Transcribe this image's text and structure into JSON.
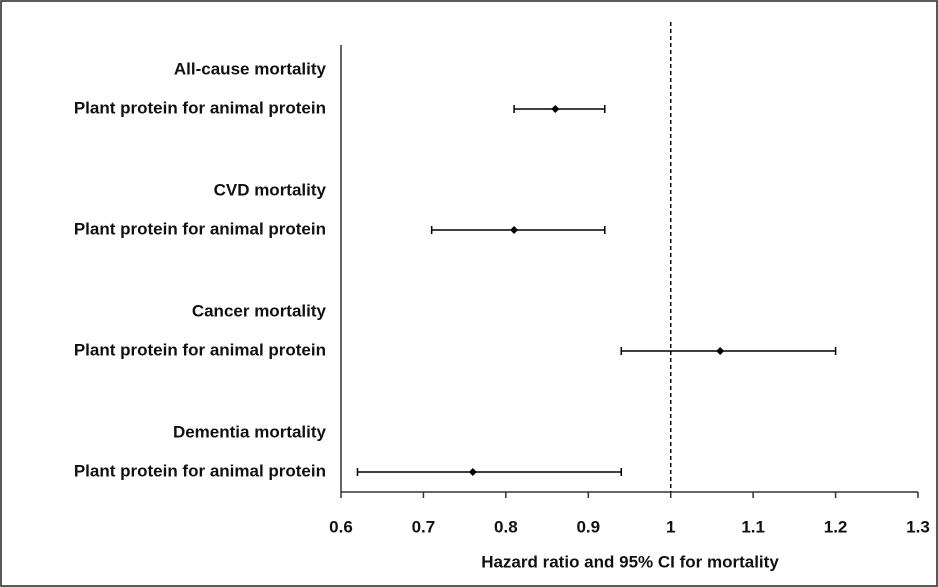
{
  "chart_data": {
    "type": "forest",
    "xlabel": "Hazard ratio and 95% CI for mortality",
    "groups": [
      {
        "name": "All-cause mortality",
        "label": "Plant protein for animal protein",
        "value": 0.86,
        "lower": 0.81,
        "upper": 0.92
      },
      {
        "name": "CVD mortality",
        "label": "Plant protein for animal protein",
        "value": 0.81,
        "lower": 0.71,
        "upper": 0.92
      },
      {
        "name": "Cancer mortality",
        "label": "Plant protein for animal protein",
        "value": 1.06,
        "lower": 0.94,
        "upper": 1.2
      },
      {
        "name": "Dementia mortality",
        "label": "Plant protein for animal protein",
        "value": 0.76,
        "lower": 0.62,
        "upper": 0.94
      }
    ],
    "reference_line": 1,
    "color": "#000000",
    "xlim": [
      0.6,
      1.3
    ],
    "xticks": [
      0.6,
      0.7,
      0.8,
      0.9,
      1,
      1.1,
      1.2,
      1.3
    ]
  }
}
